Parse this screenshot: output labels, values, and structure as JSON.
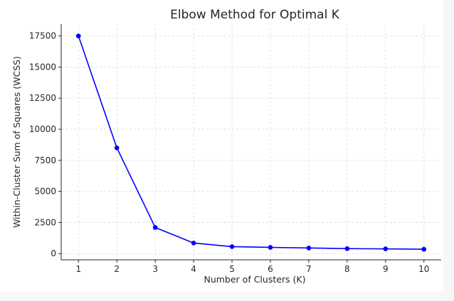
{
  "chart_data": {
    "type": "line",
    "title": "Elbow Method for Optimal K",
    "xlabel": "Number of Clusters (K)",
    "ylabel": "Within-Cluster Sum of Squares (WCSS)",
    "x": [
      1,
      2,
      3,
      4,
      5,
      6,
      7,
      8,
      9,
      10
    ],
    "series": [
      {
        "values": [
          17500,
          8500,
          2100,
          850,
          560,
          500,
          450,
          400,
          380,
          350
        ],
        "color": "#0000ff",
        "marker": "circle"
      }
    ],
    "xticks": [
      "1",
      "2",
      "3",
      "4",
      "5",
      "6",
      "7",
      "8",
      "9",
      "10"
    ],
    "yticks": [
      "0",
      "2500",
      "5000",
      "7500",
      "10000",
      "12500",
      "15000",
      "17500"
    ],
    "ylim": [
      -500,
      18450
    ],
    "xlim": [
      0.55,
      10.45
    ],
    "grid": true,
    "grid_style": "dashed"
  }
}
